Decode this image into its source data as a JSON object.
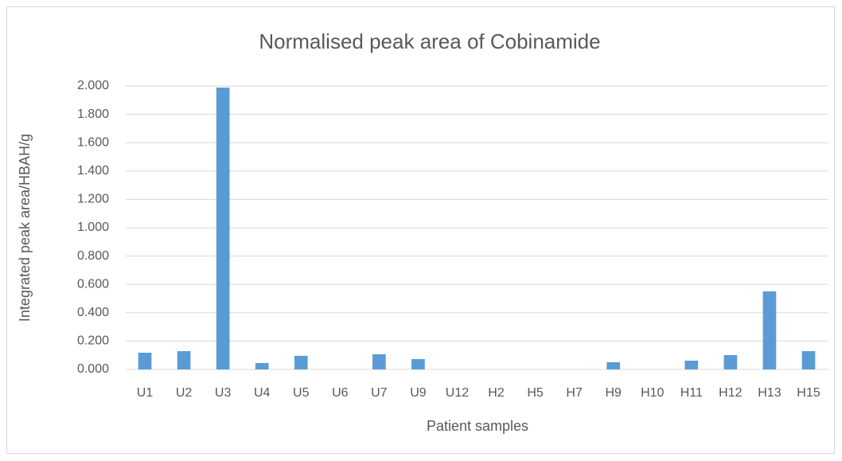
{
  "chart_data": {
    "type": "bar",
    "title": "Normalised peak area of Cobinamide",
    "x_label": "Patient samples",
    "y_label": "Integrated peak area/HBAH/g",
    "categories": [
      "U1",
      "U2",
      "U3",
      "U4",
      "U5",
      "U6",
      "U7",
      "U9",
      "U12",
      "H2",
      "H5",
      "H7",
      "H9",
      "H10",
      "H11",
      "H12",
      "H13",
      "H15"
    ],
    "values": [
      0.118,
      0.129,
      1.989,
      0.045,
      0.096,
      0,
      0.107,
      0.073,
      0,
      0,
      0,
      0,
      0.051,
      0,
      0.062,
      0.101,
      0.551,
      0.129
    ],
    "color": "#5b9bd5",
    "ylim": [
      0,
      2
    ],
    "yticks": [
      {
        "value": 0,
        "label": "0.000"
      },
      {
        "value": 0.2,
        "label": "0.200"
      },
      {
        "value": 0.4,
        "label": "0.400"
      },
      {
        "value": 0.6,
        "label": "0.600"
      },
      {
        "value": 0.8,
        "label": "0.800"
      },
      {
        "value": 1,
        "label": "1.000"
      },
      {
        "value": 1.2,
        "label": "1.200"
      },
      {
        "value": 1.4,
        "label": "1.400"
      },
      {
        "value": 1.6,
        "label": "1.600"
      },
      {
        "value": 1.8,
        "label": "1.800"
      },
      {
        "value": 2,
        "label": "2.000"
      }
    ],
    "grid": true
  }
}
